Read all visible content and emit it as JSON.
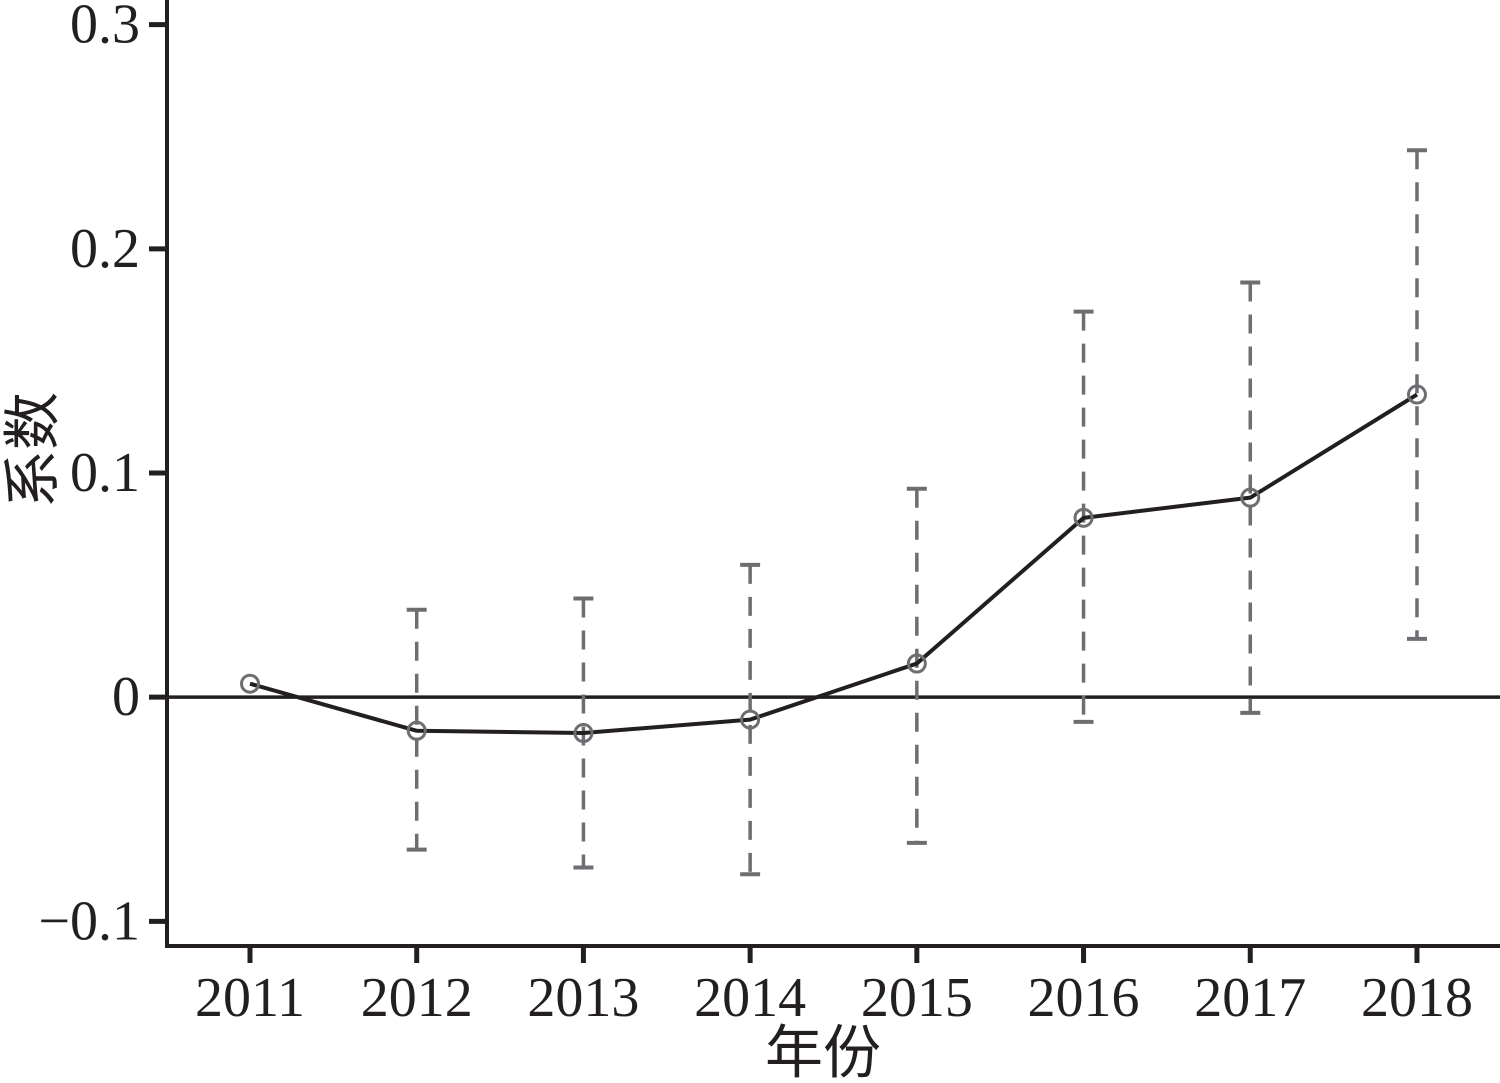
{
  "chart_data": {
    "type": "line",
    "title": "",
    "xlabel": "年份",
    "ylabel": "系数",
    "categories": [
      "2011",
      "2012",
      "2013",
      "2014",
      "2015",
      "2016",
      "2017",
      "2018"
    ],
    "series": [
      {
        "name": "系数",
        "values": [
          0.006,
          -0.015,
          -0.016,
          -0.01,
          0.015,
          0.08,
          0.089,
          0.135
        ],
        "ci_low": [
          null,
          -0.068,
          -0.076,
          -0.079,
          -0.065,
          -0.011,
          -0.007,
          0.026
        ],
        "ci_high": [
          null,
          0.039,
          0.044,
          0.059,
          0.093,
          0.172,
          0.185,
          0.244
        ]
      }
    ],
    "yticks": [
      -0.1,
      0,
      0.1,
      0.2,
      0.3
    ],
    "ytick_labels": [
      "−0.1",
      "0",
      "0.1",
      "0.2",
      "0.3"
    ],
    "ylim": [
      -0.111,
      0.311
    ],
    "zero_line": true,
    "grid": false,
    "legend_position": "none",
    "marker_style": "open-circle",
    "error_bar_style": "dashed",
    "colors": {
      "line": "#231f20",
      "marker": "#6d6e71",
      "error_bar": "#6d6e71",
      "axis": "#231f20",
      "text": "#231f20",
      "background": "#ffffff"
    }
  }
}
